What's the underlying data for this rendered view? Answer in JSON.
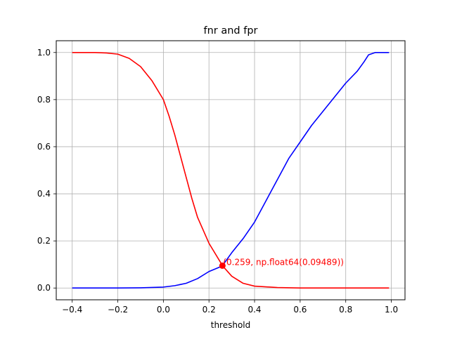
{
  "chart_data": {
    "type": "line",
    "title": "fnr and fpr",
    "xlabel": "threshold",
    "ylabel": "",
    "xlim": [
      -0.47,
      1.06
    ],
    "ylim": [
      -0.05,
      1.05
    ],
    "xticks": [
      -0.4,
      -0.2,
      0.0,
      0.2,
      0.4,
      0.6,
      0.8,
      1.0
    ],
    "xtick_labels": [
      "−0.4",
      "−0.2",
      "0.0",
      "0.2",
      "0.4",
      "0.6",
      "0.8",
      "1.0"
    ],
    "yticks": [
      0.0,
      0.2,
      0.4,
      0.6,
      0.8,
      1.0
    ],
    "ytick_labels": [
      "0.0",
      "0.2",
      "0.4",
      "0.6",
      "0.8",
      "1.0"
    ],
    "grid": true,
    "series": [
      {
        "color": "#ff0000",
        "x": [
          -0.4,
          -0.3,
          -0.25,
          -0.2,
          -0.15,
          -0.1,
          -0.05,
          0.0,
          0.025,
          0.05,
          0.075,
          0.1,
          0.125,
          0.15,
          0.2,
          0.25,
          0.259,
          0.3,
          0.35,
          0.4,
          0.5,
          0.6,
          0.8,
          0.99
        ],
        "y": [
          1.0,
          1.0,
          0.998,
          0.993,
          0.975,
          0.94,
          0.88,
          0.8,
          0.73,
          0.65,
          0.56,
          0.47,
          0.38,
          0.3,
          0.19,
          0.11,
          0.0949,
          0.05,
          0.02,
          0.008,
          0.002,
          0.0,
          0.0,
          0.0
        ]
      },
      {
        "color": "#0000ff",
        "x": [
          -0.4,
          -0.2,
          -0.1,
          0.0,
          0.05,
          0.1,
          0.15,
          0.2,
          0.25,
          0.259,
          0.3,
          0.35,
          0.4,
          0.45,
          0.5,
          0.55,
          0.6,
          0.65,
          0.7,
          0.75,
          0.8,
          0.85,
          0.88,
          0.9,
          0.93,
          0.99
        ],
        "y": [
          0.0,
          0.0,
          0.001,
          0.004,
          0.01,
          0.02,
          0.04,
          0.07,
          0.09,
          0.0949,
          0.15,
          0.21,
          0.28,
          0.37,
          0.46,
          0.55,
          0.62,
          0.69,
          0.75,
          0.81,
          0.87,
          0.92,
          0.96,
          0.99,
          1.0,
          1.0
        ]
      }
    ],
    "marker": {
      "x": 0.259,
      "y": 0.09489,
      "color": "#ff0000"
    },
    "annotation": {
      "text": "(0.259, np.float64(0.09489))",
      "x": 0.259,
      "y": 0.09489,
      "color": "#ff0000"
    }
  }
}
